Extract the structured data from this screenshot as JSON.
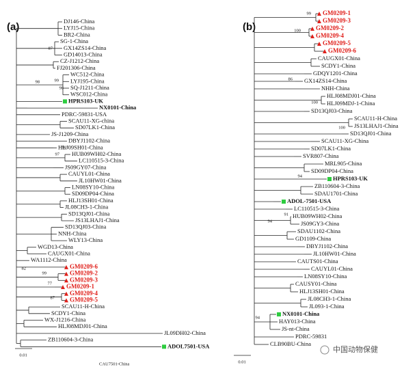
{
  "panel_a": {
    "label": "(a)",
    "leaves": [
      "DJ146-China",
      "LYJ15-China",
      "BR2-China",
      "SG-1-China",
      "GX14ZS14-China",
      "GD14013-China",
      "CZ-J1212-China",
      "FJ201306-China",
      "WC512-China",
      "LYJ195-China",
      "SQ-J1211-China",
      "WSC012-China",
      "HPRS103-UK",
      "NX0101-China",
      "PDRC-59831-USA",
      "SCAU11-XG-china",
      "SD07LK1-China",
      "JS-J1209-China",
      "DBYJ1102-China",
      "HLJ09SH01-China",
      "HUB09WH02-China",
      "LC110515-3-China",
      "JS09GY07-China",
      "CAUYL01-China",
      "JL10HW01-China",
      "LN08SY10-China",
      "SD09DP04-China",
      "HLJ13SH01-China",
      "JL08CH3-1-China",
      "SD13QJ01-China",
      "JS13LHAJ1-China",
      "SD13QJ03-China",
      "NNH-China",
      "WLY13-China",
      "WGD13-China",
      "CAUGX01-China",
      "WA1112-China",
      "GM0209-6",
      "GM0209-2",
      "GM0209-3",
      "GM0209-1",
      "GM0209-4",
      "GM0209-5",
      "SCAU11-H-China",
      "SCDY1-China",
      "WX-J1216-China",
      "HLJ08MDJ01-China",
      "JL09DH02-China",
      "ZB110604-3-China",
      "ADOL7501-USA"
    ],
    "bootstrap": [
      87,
      98,
      99,
      98,
      97,
      98,
      82,
      99,
      77,
      87
    ],
    "scale": "0.01",
    "footer": "CAU7501-China"
  },
  "panel_b": {
    "label": "(b)",
    "leaves": [
      "GM0209-1",
      "GM0209-3",
      "GM0209-2",
      "GM0209-4",
      "GM0209-5",
      "GM0209-6",
      "CAUGX01-China",
      "SCDY1-China",
      "GDQY1201-China",
      "GX14ZS14-China",
      "NHH-China",
      "HLJ08MDJ01-China",
      "HLJ09MDJ-1-China",
      "SD13QJ03-China",
      "SCAU11-H-China",
      "JS13LHAJ1-China",
      "SD13QJ01-China",
      "SCAU11-XG-China",
      "SD07LK1-China",
      "SVR807-China",
      "MRL905-China",
      "SD09DP04-China",
      "HPRS103-UK",
      "ZB110604-3-China",
      "SDAU1701-China",
      "ADOL-7501-USA",
      "LC110515-3-China",
      "HUB09WH02-China",
      "JS09GY3-China",
      "SDAU1102-China",
      "GD1109-China",
      "DBYJ1102-China",
      "JL10HW01-China",
      "CAUTS01-China",
      "CAUYL01-China",
      "LN08SY10-China",
      "CAUSY01-China",
      "HLJ13SH01-China",
      "JL08CH3-1-China",
      "JL093-1-China",
      "NX0101-China",
      "HAY013-China",
      "JS-nt-China",
      "PDRC-59831",
      "CLB90BU-China"
    ],
    "bootstrap": [
      99,
      100,
      86,
      100,
      100,
      94,
      91,
      94,
      94
    ],
    "scale": "0.01"
  },
  "watermark": "中国动物保健"
}
